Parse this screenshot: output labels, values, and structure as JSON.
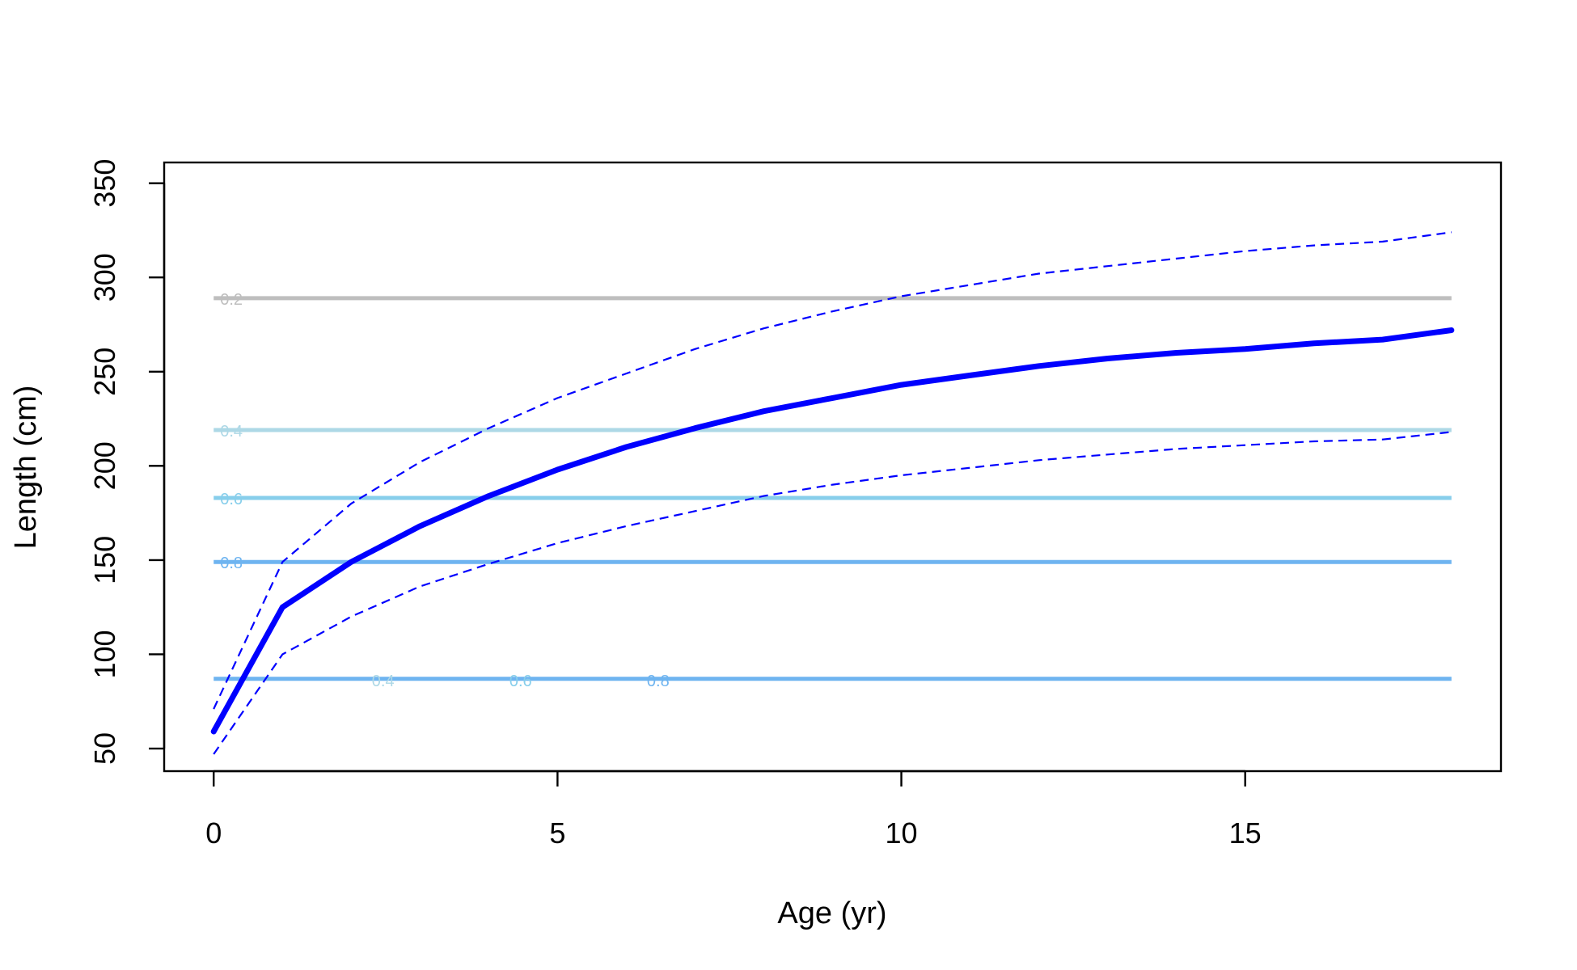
{
  "chart_data": {
    "type": "line",
    "title": "",
    "xlabel": "Age (yr)",
    "ylabel": "Length (cm)",
    "xlim": [
      -0.72,
      18.72
    ],
    "ylim": [
      38,
      361
    ],
    "x_ticks": [
      0,
      5,
      10,
      15
    ],
    "y_ticks": [
      50,
      100,
      150,
      200,
      250,
      300,
      350
    ],
    "grid": false,
    "legend": "none",
    "x": [
      0,
      1,
      2,
      3,
      4,
      5,
      6,
      7,
      8,
      9,
      10,
      11,
      12,
      13,
      14,
      15,
      16,
      17,
      18
    ],
    "series": [
      {
        "role": "mean",
        "style": "solid-thick",
        "color": "#0000ff",
        "values": [
          59,
          125,
          149,
          168,
          184,
          198,
          210,
          220,
          229,
          236,
          243,
          248,
          253,
          257,
          260,
          262,
          265,
          267,
          272
        ]
      },
      {
        "role": "upper",
        "style": "dashed",
        "color": "#0000ff",
        "values": [
          71,
          149,
          180,
          202,
          220,
          236,
          249,
          262,
          273,
          282,
          290,
          296,
          302,
          306,
          310,
          314,
          317,
          319,
          324
        ]
      },
      {
        "role": "lower",
        "style": "dashed",
        "color": "#0000ff",
        "values": [
          47,
          100,
          120,
          136,
          148,
          159,
          168,
          176,
          184,
          190,
          195,
          199,
          203,
          206,
          209,
          211,
          213,
          214,
          218
        ]
      }
    ],
    "reference_lines": [
      {
        "y": 289,
        "label": "0.2",
        "color": "#bebebe"
      },
      {
        "y": 219,
        "label": "0.4",
        "color": "#add8e6"
      },
      {
        "y": 183,
        "label": "0.6",
        "color": "#87ceeb"
      },
      {
        "y": 149,
        "label": "0.8",
        "color": "#6eb4f0"
      },
      {
        "y": 87,
        "label": "",
        "color": "#6eb4f0"
      }
    ],
    "bottom_line_labels": [
      {
        "x": 2.3,
        "label": "0.4",
        "color": "#add8e6"
      },
      {
        "x": 4.3,
        "label": "0.6",
        "color": "#87ceeb"
      },
      {
        "x": 6.3,
        "label": "0.8",
        "color": "#6eb4f0"
      }
    ]
  }
}
